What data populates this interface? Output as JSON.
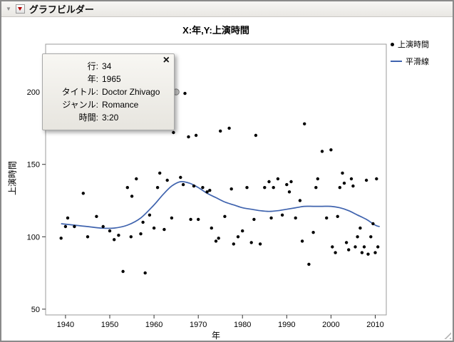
{
  "window": {
    "title": "グラフビルダー"
  },
  "chart": {
    "title": "X:年,Y:上演時間"
  },
  "legend": {
    "items": [
      {
        "label": "上演時間",
        "marker": "dot"
      },
      {
        "label": "平滑線",
        "marker": "line"
      }
    ]
  },
  "tooltip": {
    "close": "×",
    "rows": [
      {
        "label": "行:",
        "value": "34"
      },
      {
        "label": "年:",
        "value": "1965"
      },
      {
        "label": "タイトル:",
        "value": "Doctor Zhivago"
      },
      {
        "label": "ジャンル:",
        "value": "Romance"
      },
      {
        "label": "時間:",
        "value": "3:20"
      }
    ]
  },
  "colors": {
    "smooth_line": "#3f63ae",
    "point": "#000000",
    "frame": "#9b9b9b",
    "tick": "#333333",
    "highlight_fill": "#c9c9c9",
    "highlight_stroke": "#7d7d7d",
    "red_triangle": "#b40000"
  },
  "chart_data": {
    "type": "scatter",
    "title": "X:年,Y:上演時間",
    "xlabel": "年",
    "ylabel": "上演時間",
    "xlim": [
      1935.5,
      2012.5
    ],
    "ylim": [
      46,
      233
    ],
    "x_ticks": [
      1940,
      1950,
      1960,
      1970,
      1980,
      1990,
      2000,
      2010
    ],
    "y_ticks": [
      50,
      100,
      150,
      200
    ],
    "grid": false,
    "legend_position": "right",
    "highlighted_point": {
      "x": 1965,
      "y": 200
    },
    "series": [
      {
        "name": "上演時間",
        "type": "scatter",
        "color": "#000000",
        "points": [
          [
            1939,
            99
          ],
          [
            1940,
            107
          ],
          [
            1940.5,
            113
          ],
          [
            1942,
            107
          ],
          [
            1944,
            130
          ],
          [
            1945,
            100
          ],
          [
            1947,
            114
          ],
          [
            1948.5,
            107
          ],
          [
            1950,
            104
          ],
          [
            1951,
            98
          ],
          [
            1952,
            101
          ],
          [
            1953,
            76
          ],
          [
            1954,
            134
          ],
          [
            1954.8,
            100
          ],
          [
            1955,
            128
          ],
          [
            1956,
            140
          ],
          [
            1957,
            102
          ],
          [
            1957.5,
            110
          ],
          [
            1958,
            75
          ],
          [
            1959,
            115
          ],
          [
            1960,
            106
          ],
          [
            1960.8,
            134
          ],
          [
            1961.3,
            144
          ],
          [
            1962,
            225
          ],
          [
            1962.3,
            105
          ],
          [
            1963,
            139
          ],
          [
            1964,
            113
          ],
          [
            1964.4,
            172
          ],
          [
            1966,
            141
          ],
          [
            1966.6,
            136
          ],
          [
            1967,
            199
          ],
          [
            1967.8,
            169
          ],
          [
            1968.3,
            112
          ],
          [
            1969,
            135
          ],
          [
            1969.5,
            170
          ],
          [
            1970,
            112
          ],
          [
            1971,
            134
          ],
          [
            1972,
            131
          ],
          [
            1972.6,
            132
          ],
          [
            1973,
            106
          ],
          [
            1974,
            97
          ],
          [
            1974.6,
            99
          ],
          [
            1975,
            173
          ],
          [
            1976,
            114
          ],
          [
            1977,
            175
          ],
          [
            1977.5,
            133
          ],
          [
            1978,
            95
          ],
          [
            1979,
            100
          ],
          [
            1980,
            104
          ],
          [
            1981,
            134
          ],
          [
            1982,
            96
          ],
          [
            1982.6,
            112
          ],
          [
            1983,
            170
          ],
          [
            1984,
            95
          ],
          [
            1985,
            134
          ],
          [
            1986,
            138
          ],
          [
            1986.5,
            113
          ],
          [
            1987,
            134
          ],
          [
            1988,
            140
          ],
          [
            1989,
            115
          ],
          [
            1990,
            136
          ],
          [
            1990.6,
            131
          ],
          [
            1991,
            138
          ],
          [
            1992,
            113
          ],
          [
            1993,
            125
          ],
          [
            1993.5,
            97
          ],
          [
            1994,
            178
          ],
          [
            1995,
            81
          ],
          [
            1996,
            103
          ],
          [
            1996.6,
            134
          ],
          [
            1997,
            140
          ],
          [
            1998,
            159
          ],
          [
            1999,
            113
          ],
          [
            2000,
            160
          ],
          [
            2000.3,
            93
          ],
          [
            2001,
            89
          ],
          [
            2001.5,
            114
          ],
          [
            2002,
            134
          ],
          [
            2002.6,
            144
          ],
          [
            2003,
            137
          ],
          [
            2003.5,
            96
          ],
          [
            2004,
            91
          ],
          [
            2004.6,
            140
          ],
          [
            2005,
            135
          ],
          [
            2005.5,
            93
          ],
          [
            2006,
            100
          ],
          [
            2006.6,
            106
          ],
          [
            2007,
            89
          ],
          [
            2007.5,
            93
          ],
          [
            2008,
            139
          ],
          [
            2008.4,
            88
          ],
          [
            2009,
            100
          ],
          [
            2009.5,
            109
          ],
          [
            2010,
            89
          ],
          [
            2010.3,
            140
          ],
          [
            2010.6,
            93
          ]
        ]
      },
      {
        "name": "平滑線",
        "type": "line",
        "color": "#3f63ae",
        "points": [
          [
            1939,
            109
          ],
          [
            1942,
            108
          ],
          [
            1945,
            107
          ],
          [
            1948,
            106
          ],
          [
            1951,
            106
          ],
          [
            1954,
            108
          ],
          [
            1957,
            113
          ],
          [
            1960,
            122
          ],
          [
            1962,
            129
          ],
          [
            1964,
            135
          ],
          [
            1966,
            138
          ],
          [
            1968,
            137
          ],
          [
            1970,
            134
          ],
          [
            1972,
            130
          ],
          [
            1974,
            127
          ],
          [
            1976,
            124
          ],
          [
            1978,
            122
          ],
          [
            1980,
            120
          ],
          [
            1982,
            119
          ],
          [
            1984,
            118
          ],
          [
            1986,
            117.5
          ],
          [
            1988,
            118
          ],
          [
            1990,
            119
          ],
          [
            1992,
            120
          ],
          [
            1994,
            121
          ],
          [
            1996,
            121
          ],
          [
            1998,
            121
          ],
          [
            2000,
            121
          ],
          [
            2002,
            120
          ],
          [
            2004,
            118
          ],
          [
            2006,
            115
          ],
          [
            2008,
            112
          ],
          [
            2010,
            108
          ],
          [
            2011,
            107
          ]
        ]
      }
    ]
  }
}
